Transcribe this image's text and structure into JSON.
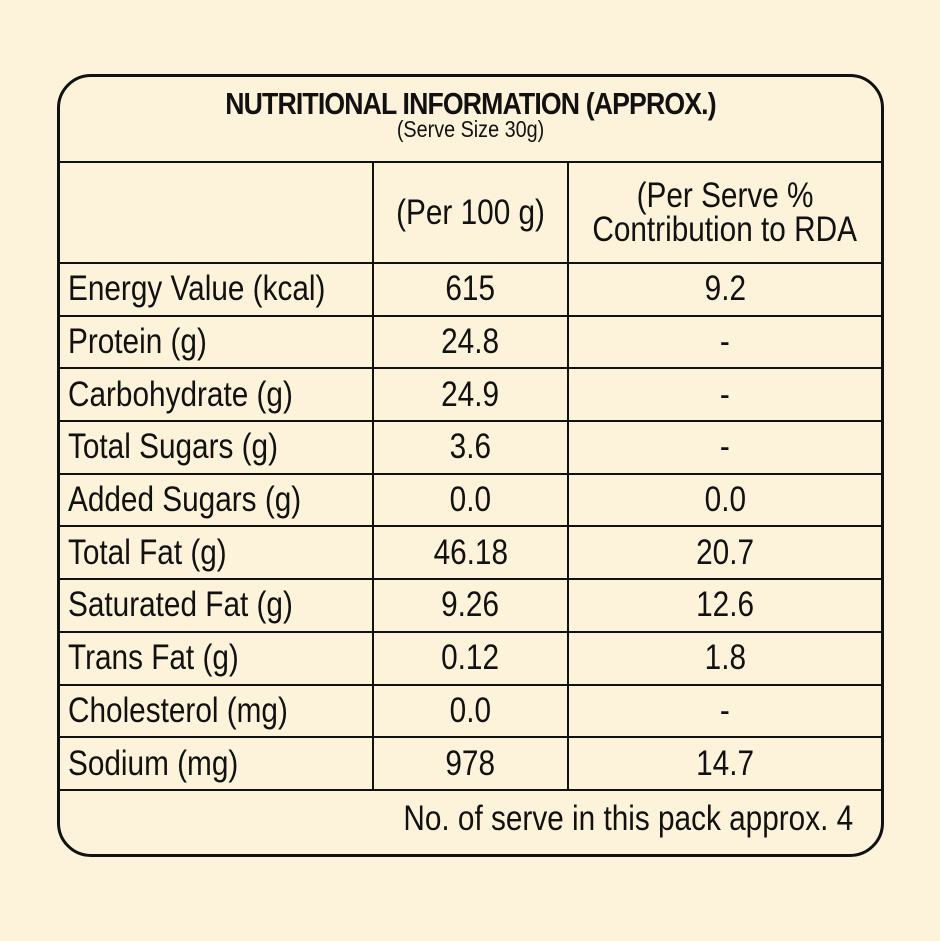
{
  "title": "NUTRITIONAL INFORMATION (APPROX.)",
  "subtitle": "(Serve Size 30g)",
  "columns": {
    "nutrient": "",
    "per_100g": "(Per 100 g)",
    "per_serve_line1": "(Per Serve %",
    "per_serve_line2": "Contribution to RDA"
  },
  "rows": [
    {
      "nutrient": "Energy Value (kcal)",
      "per_100g": "615",
      "per_serve_rda": "9.2"
    },
    {
      "nutrient": "Protein (g)",
      "per_100g": "24.8",
      "per_serve_rda": "-"
    },
    {
      "nutrient": "Carbohydrate (g)",
      "per_100g": "24.9",
      "per_serve_rda": "-"
    },
    {
      "nutrient": "Total Sugars (g)",
      "per_100g": "3.6",
      "per_serve_rda": "-"
    },
    {
      "nutrient": "Added Sugars (g)",
      "per_100g": "0.0",
      "per_serve_rda": "0.0"
    },
    {
      "nutrient": "Total Fat (g)",
      "per_100g": "46.18",
      "per_serve_rda": "20.7"
    },
    {
      "nutrient": "Saturated Fat (g)",
      "per_100g": "9.26",
      "per_serve_rda": "12.6"
    },
    {
      "nutrient": "Trans Fat (g)",
      "per_100g": "0.12",
      "per_serve_rda": "1.8"
    },
    {
      "nutrient": "Cholesterol (mg)",
      "per_100g": "0.0",
      "per_serve_rda": "-"
    },
    {
      "nutrient": "Sodium (mg)",
      "per_100g": "978",
      "per_serve_rda": "14.7"
    }
  ],
  "footer": "No. of serve in this pack approx. 4",
  "colors": {
    "background": "#fdf3da",
    "border": "#111111",
    "text": "#111111"
  }
}
